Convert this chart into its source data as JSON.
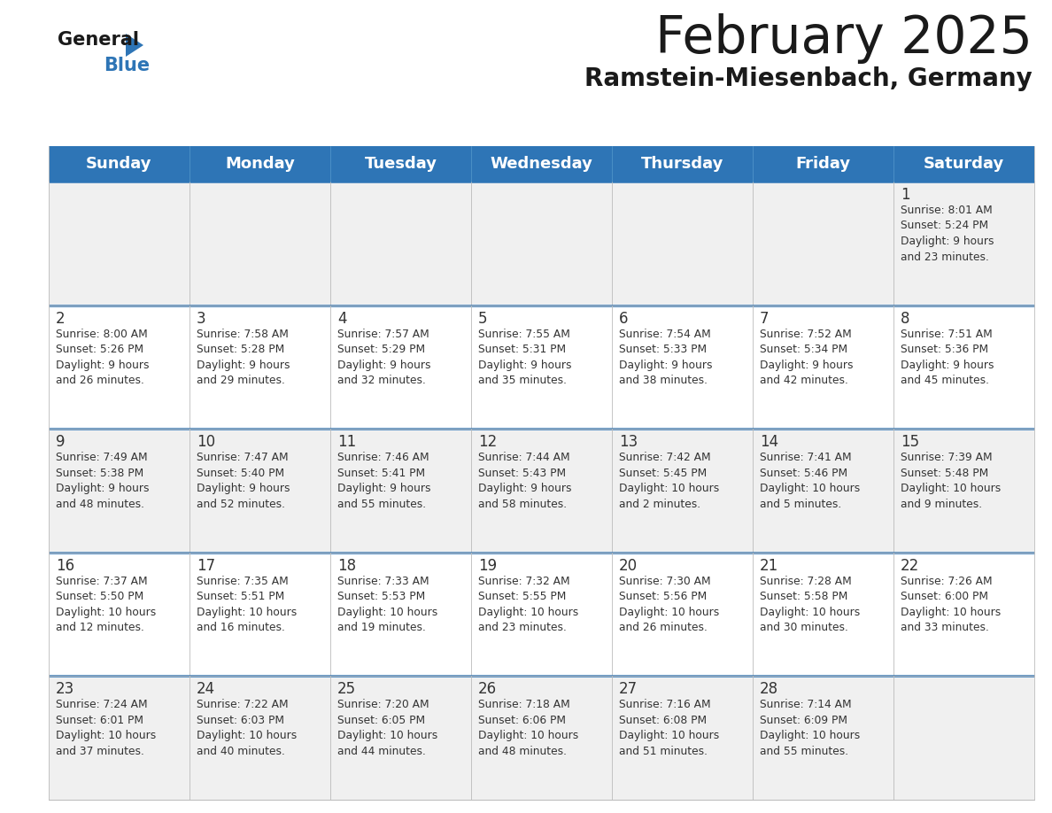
{
  "title": "February 2025",
  "subtitle": "Ramstein-Miesenbach, Germany",
  "header_bg": "#2e75b6",
  "header_text_color": "#ffffff",
  "days_of_week": [
    "Sunday",
    "Monday",
    "Tuesday",
    "Wednesday",
    "Thursday",
    "Friday",
    "Saturday"
  ],
  "cell_bg_odd": "#f0f0f0",
  "cell_bg_even": "#ffffff",
  "cell_border_top_color": "#2e75b6",
  "cell_border_color": "#bbbbbb",
  "text_color": "#333333",
  "calendar": [
    [
      null,
      null,
      null,
      null,
      null,
      null,
      {
        "day": 1,
        "sunrise": "8:01 AM",
        "sunset": "5:24 PM",
        "daylight": "9 hours\nand 23 minutes."
      }
    ],
    [
      {
        "day": 2,
        "sunrise": "8:00 AM",
        "sunset": "5:26 PM",
        "daylight": "9 hours\nand 26 minutes."
      },
      {
        "day": 3,
        "sunrise": "7:58 AM",
        "sunset": "5:28 PM",
        "daylight": "9 hours\nand 29 minutes."
      },
      {
        "day": 4,
        "sunrise": "7:57 AM",
        "sunset": "5:29 PM",
        "daylight": "9 hours\nand 32 minutes."
      },
      {
        "day": 5,
        "sunrise": "7:55 AM",
        "sunset": "5:31 PM",
        "daylight": "9 hours\nand 35 minutes."
      },
      {
        "day": 6,
        "sunrise": "7:54 AM",
        "sunset": "5:33 PM",
        "daylight": "9 hours\nand 38 minutes."
      },
      {
        "day": 7,
        "sunrise": "7:52 AM",
        "sunset": "5:34 PM",
        "daylight": "9 hours\nand 42 minutes."
      },
      {
        "day": 8,
        "sunrise": "7:51 AM",
        "sunset": "5:36 PM",
        "daylight": "9 hours\nand 45 minutes."
      }
    ],
    [
      {
        "day": 9,
        "sunrise": "7:49 AM",
        "sunset": "5:38 PM",
        "daylight": "9 hours\nand 48 minutes."
      },
      {
        "day": 10,
        "sunrise": "7:47 AM",
        "sunset": "5:40 PM",
        "daylight": "9 hours\nand 52 minutes."
      },
      {
        "day": 11,
        "sunrise": "7:46 AM",
        "sunset": "5:41 PM",
        "daylight": "9 hours\nand 55 minutes."
      },
      {
        "day": 12,
        "sunrise": "7:44 AM",
        "sunset": "5:43 PM",
        "daylight": "9 hours\nand 58 minutes."
      },
      {
        "day": 13,
        "sunrise": "7:42 AM",
        "sunset": "5:45 PM",
        "daylight": "10 hours\nand 2 minutes."
      },
      {
        "day": 14,
        "sunrise": "7:41 AM",
        "sunset": "5:46 PM",
        "daylight": "10 hours\nand 5 minutes."
      },
      {
        "day": 15,
        "sunrise": "7:39 AM",
        "sunset": "5:48 PM",
        "daylight": "10 hours\nand 9 minutes."
      }
    ],
    [
      {
        "day": 16,
        "sunrise": "7:37 AM",
        "sunset": "5:50 PM",
        "daylight": "10 hours\nand 12 minutes."
      },
      {
        "day": 17,
        "sunrise": "7:35 AM",
        "sunset": "5:51 PM",
        "daylight": "10 hours\nand 16 minutes."
      },
      {
        "day": 18,
        "sunrise": "7:33 AM",
        "sunset": "5:53 PM",
        "daylight": "10 hours\nand 19 minutes."
      },
      {
        "day": 19,
        "sunrise": "7:32 AM",
        "sunset": "5:55 PM",
        "daylight": "10 hours\nand 23 minutes."
      },
      {
        "day": 20,
        "sunrise": "7:30 AM",
        "sunset": "5:56 PM",
        "daylight": "10 hours\nand 26 minutes."
      },
      {
        "day": 21,
        "sunrise": "7:28 AM",
        "sunset": "5:58 PM",
        "daylight": "10 hours\nand 30 minutes."
      },
      {
        "day": 22,
        "sunrise": "7:26 AM",
        "sunset": "6:00 PM",
        "daylight": "10 hours\nand 33 minutes."
      }
    ],
    [
      {
        "day": 23,
        "sunrise": "7:24 AM",
        "sunset": "6:01 PM",
        "daylight": "10 hours\nand 37 minutes."
      },
      {
        "day": 24,
        "sunrise": "7:22 AM",
        "sunset": "6:03 PM",
        "daylight": "10 hours\nand 40 minutes."
      },
      {
        "day": 25,
        "sunrise": "7:20 AM",
        "sunset": "6:05 PM",
        "daylight": "10 hours\nand 44 minutes."
      },
      {
        "day": 26,
        "sunrise": "7:18 AM",
        "sunset": "6:06 PM",
        "daylight": "10 hours\nand 48 minutes."
      },
      {
        "day": 27,
        "sunrise": "7:16 AM",
        "sunset": "6:08 PM",
        "daylight": "10 hours\nand 51 minutes."
      },
      {
        "day": 28,
        "sunrise": "7:14 AM",
        "sunset": "6:09 PM",
        "daylight": "10 hours\nand 55 minutes."
      },
      null
    ]
  ]
}
